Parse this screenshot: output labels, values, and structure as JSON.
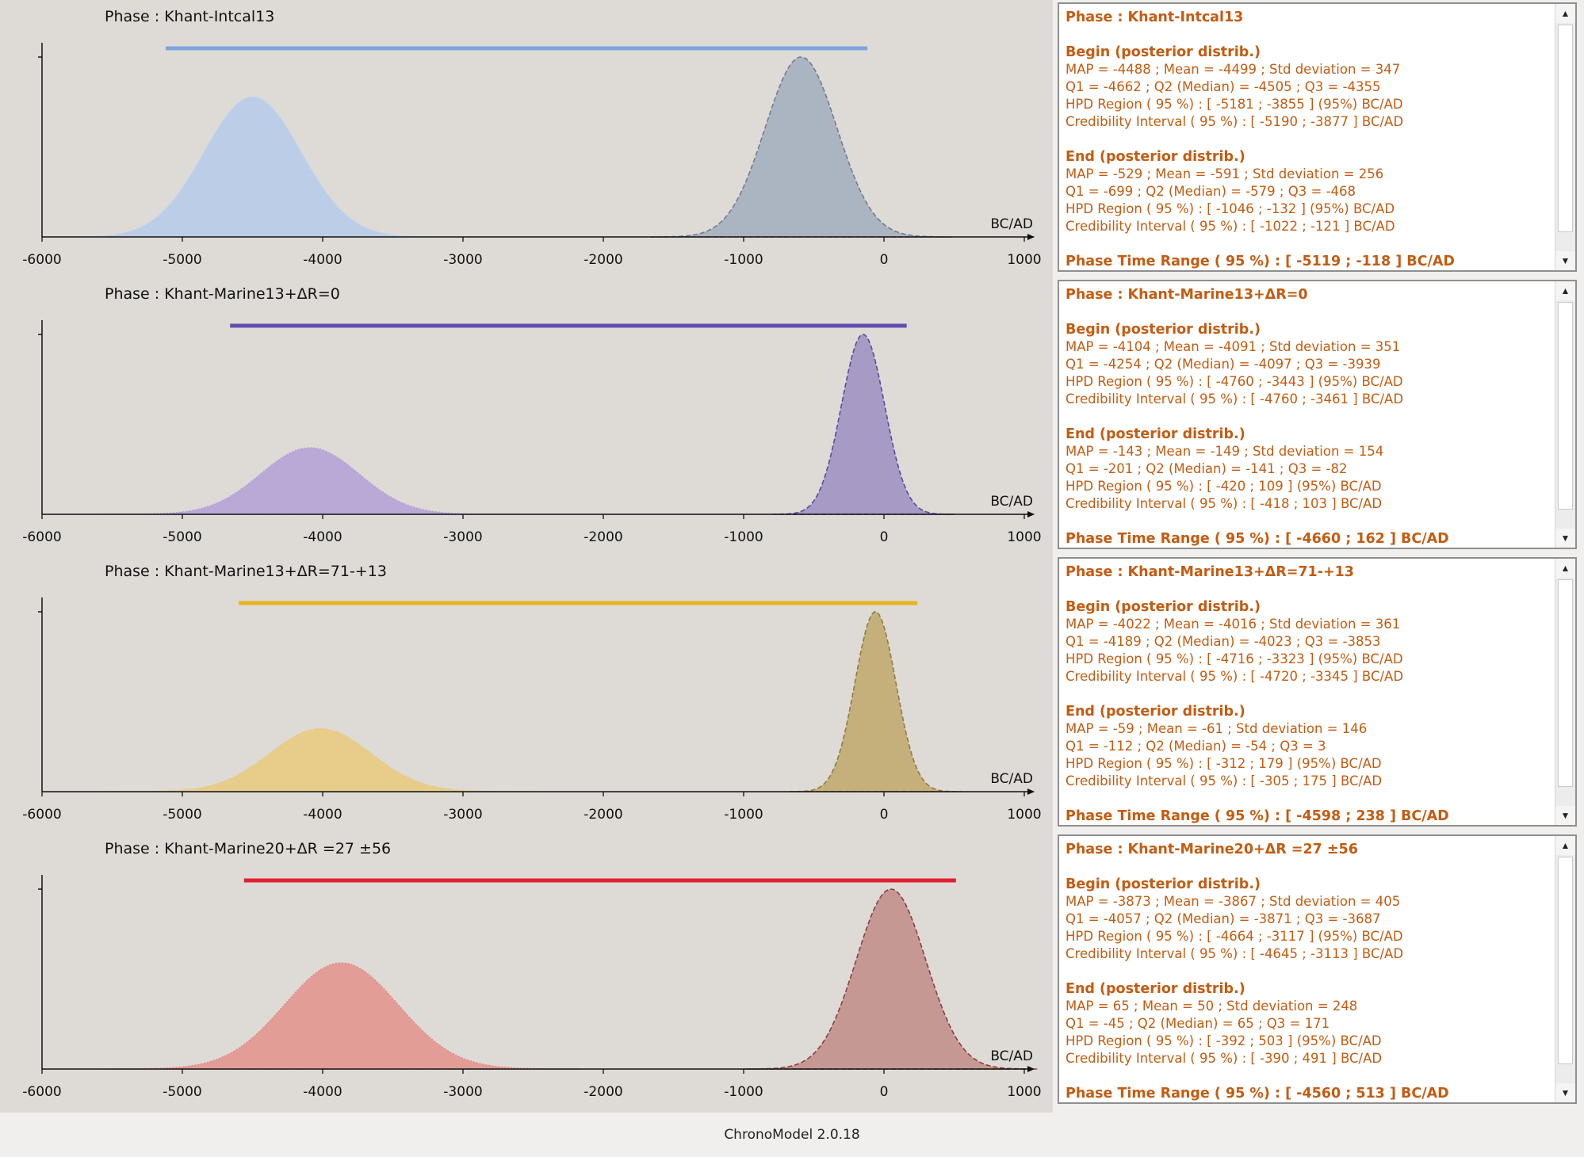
{
  "app": {
    "version_label": "ChronoModel 2.0.18"
  },
  "colors": {
    "phase_1": "#7ea6dd",
    "phase_2": "#5d4fae",
    "phase_3": "#e9b41c",
    "phase_4": "#e0202f"
  },
  "panels": [
    {
      "title": "Phase : Khant-Intcal13",
      "axis_unit": "BC/AD",
      "info": {
        "header": "Phase : Khant-Intcal13",
        "begin_title": "Begin (posterior distrib.)",
        "begin_lines": [
          "MAP = -4488 ; Mean = -4499 ; Std deviation = 347",
          "Q1 = -4662 ; Q2 (Median) = -4505 ; Q3 = -4355",
          "HPD Region ( 95 %) : [ -5181 ; -3855 ] (95%) BC/AD",
          "Credibility Interval ( 95 %) : [ -5190 ; -3877 ] BC/AD"
        ],
        "end_title": "End (posterior distrib.)",
        "end_lines": [
          "MAP = -529 ; Mean = -591 ; Std deviation = 256",
          "Q1 = -699 ; Q2 (Median) = -579 ; Q3 = -468",
          "HPD Region ( 95 %) : [ -1046 ; -132 ] (95%) BC/AD",
          "Credibility Interval ( 95 %) : [ -1022 ; -121 ] BC/AD"
        ],
        "range_line": "Phase Time Range ( 95 %) : [ -5119 ; -118 ] BC/AD"
      }
    },
    {
      "title": "Phase : Khant-Marine13+ΔR=0",
      "axis_unit": "BC/AD",
      "info": {
        "header": "Phase : Khant-Marine13+ΔR=0",
        "begin_title": "Begin (posterior distrib.)",
        "begin_lines": [
          "MAP = -4104 ; Mean = -4091 ; Std deviation = 351",
          "Q1 = -4254 ; Q2 (Median) = -4097 ; Q3 = -3939",
          "HPD Region ( 95 %) : [ -4760 ; -3443 ] (95%) BC/AD",
          "Credibility Interval ( 95 %) : [ -4760 ; -3461 ] BC/AD"
        ],
        "end_title": "End (posterior distrib.)",
        "end_lines": [
          "MAP = -143 ; Mean = -149 ; Std deviation = 154",
          "Q1 = -201 ; Q2 (Median) = -141 ; Q3 = -82",
          "HPD Region ( 95 %) : [ -420 ; 109 ] (95%) BC/AD",
          "Credibility Interval ( 95 %) : [ -418 ; 103 ] BC/AD"
        ],
        "range_line": "Phase Time Range ( 95 %) : [ -4660 ; 162 ] BC/AD"
      }
    },
    {
      "title": "Phase : Khant-Marine13+ΔR=71-+13",
      "axis_unit": "BC/AD",
      "info": {
        "header": "Phase : Khant-Marine13+ΔR=71-+13",
        "begin_title": "Begin (posterior distrib.)",
        "begin_lines": [
          "MAP = -4022 ; Mean = -4016 ; Std deviation = 361",
          "Q1 = -4189 ; Q2 (Median) = -4023 ; Q3 = -3853",
          "HPD Region ( 95 %) : [ -4716 ; -3323 ] (95%) BC/AD",
          "Credibility Interval ( 95 %) : [ -4720 ; -3345 ] BC/AD"
        ],
        "end_title": "End (posterior distrib.)",
        "end_lines": [
          "MAP = -59 ; Mean = -61 ; Std deviation = 146",
          "Q1 = -112 ; Q2 (Median) = -54 ; Q3 = 3",
          "HPD Region ( 95 %) : [ -312 ; 179 ] (95%) BC/AD",
          "Credibility Interval ( 95 %) : [ -305 ; 175 ] BC/AD"
        ],
        "range_line": "Phase Time Range ( 95 %) : [ -4598 ; 238 ] BC/AD"
      }
    },
    {
      "title": "Phase : Khant-Marine20+ΔR =27 ±56",
      "axis_unit": "BC/AD",
      "info": {
        "header": "Phase : Khant-Marine20+ΔR =27 ±56",
        "begin_title": "Begin (posterior distrib.)",
        "begin_lines": [
          "MAP = -3873 ; Mean = -3867 ; Std deviation = 405",
          "Q1 = -4057 ; Q2 (Median) = -3871 ; Q3 = -3687",
          "HPD Region ( 95 %) : [ -4664 ; -3117 ] (95%) BC/AD",
          "Credibility Interval ( 95 %) : [ -4645 ; -3113 ] BC/AD"
        ],
        "end_title": "End (posterior distrib.)",
        "end_lines": [
          "MAP = 65 ; Mean = 50 ; Std deviation = 248",
          "Q1 = -45 ; Q2 (Median) = 65 ; Q3 = 171",
          "HPD Region ( 95 %) : [ -392 ; 503 ] (95%) BC/AD",
          "Credibility Interval ( 95 %) : [ -390 ; 491 ] BC/AD"
        ],
        "range_line": "Phase Time Range ( 95 %) : [ -4560 ; 513 ] BC/AD"
      }
    }
  ],
  "chart_data": [
    {
      "type": "area",
      "xlabel": "BC/AD",
      "x_ticks": [
        -6000,
        -5000,
        -4000,
        -3000,
        -2000,
        -1000,
        0,
        1000
      ],
      "xlim": [
        -6000,
        1000
      ],
      "phase_time_range": [
        -5119,
        -118
      ],
      "range_color": "#7ea6dd",
      "series": [
        {
          "role": "begin",
          "mean": -4499,
          "sd": 347,
          "peak": 0.78,
          "color": "#b9cde8",
          "edge": "#c8d7ee",
          "dashed": false
        },
        {
          "role": "end",
          "mean": -591,
          "sd": 256,
          "peak": 1.0,
          "color": "#a8b2c0",
          "edge": "#717d90",
          "dashed": true
        }
      ]
    },
    {
      "type": "area",
      "xlabel": "BC/AD",
      "x_ticks": [
        -6000,
        -5000,
        -4000,
        -3000,
        -2000,
        -1000,
        0,
        1000
      ],
      "xlim": [
        -6000,
        1000
      ],
      "phase_time_range": [
        -4660,
        162
      ],
      "range_color": "#5d4fae",
      "series": [
        {
          "role": "begin",
          "mean": -4091,
          "sd": 351,
          "peak": 0.37,
          "color": "#b7a7d6",
          "edge": "#b4a4d5",
          "dashed": false
        },
        {
          "role": "end",
          "mean": -149,
          "sd": 154,
          "peak": 1.0,
          "color": "#a397c4",
          "edge": "#564d9c",
          "dashed": true
        }
      ]
    },
    {
      "type": "area",
      "xlabel": "BC/AD",
      "x_ticks": [
        -6000,
        -5000,
        -4000,
        -3000,
        -2000,
        -1000,
        0,
        1000
      ],
      "xlim": [
        -6000,
        1000
      ],
      "phase_time_range": [
        -4598,
        238
      ],
      "range_color": "#e9b41c",
      "series": [
        {
          "role": "begin",
          "mean": -4016,
          "sd": 361,
          "peak": 0.35,
          "color": "#e8cc86",
          "edge": "#e7c87b",
          "dashed": false
        },
        {
          "role": "end",
          "mean": -61,
          "sd": 146,
          "peak": 1.0,
          "color": "#c3ad76",
          "edge": "#8f7d3f",
          "dashed": true
        }
      ]
    },
    {
      "type": "area",
      "xlabel": "BC/AD",
      "x_ticks": [
        -6000,
        -5000,
        -4000,
        -3000,
        -2000,
        -1000,
        0,
        1000
      ],
      "xlim": [
        -6000,
        1000
      ],
      "phase_time_range": [
        -4560,
        513
      ],
      "range_color": "#e0202f",
      "series": [
        {
          "role": "begin",
          "mean": -3867,
          "sd": 405,
          "peak": 0.59,
          "color": "#e39a93",
          "edge": "#e38c85",
          "dashed": false
        },
        {
          "role": "end",
          "mean": 50,
          "sd": 248,
          "peak": 1.0,
          "color": "#c49590",
          "edge": "#87423f",
          "dashed": true
        }
      ]
    }
  ]
}
